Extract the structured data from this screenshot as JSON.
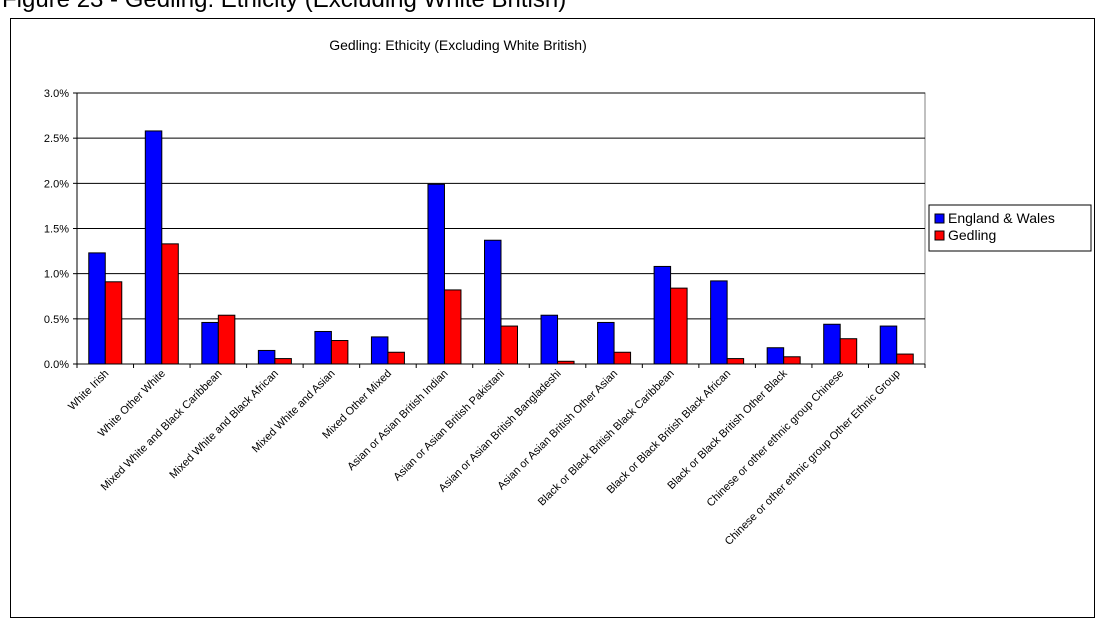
{
  "caption": "Figure 23 - Gedling: Ethicity (Excluding White British)",
  "chart_data": {
    "type": "bar",
    "title": "Gedling: Ethicity (Excluding White British)",
    "xlabel": "",
    "ylabel": "",
    "ylim": [
      0,
      3.0
    ],
    "yticks": [
      "0.0%",
      "0.5%",
      "1.0%",
      "1.5%",
      "2.0%",
      "2.5%",
      "3.0%"
    ],
    "grid": true,
    "legend_position": "right",
    "categories": [
      "White Irish",
      "White Other White",
      "Mixed White and Black Caribbean",
      "Mixed White and Black African",
      "Mixed White and Asian",
      "Mixed Other Mixed",
      "Asian or Asian British Indian",
      "Asian or Asian British Pakistani",
      "Asian or Asian British Bangladeshi",
      "Asian or Asian British Other Asian",
      "Black or Black British Black Caribbean",
      "Black or Black British Black African",
      "Black or Black British Other Black",
      "Chinese or other ethnic group Chinese",
      "Chinese or other ethnic group Other Ethnic Group"
    ],
    "series": [
      {
        "name": "England & Wales",
        "color": "#0000ff",
        "values": [
          1.23,
          2.58,
          0.46,
          0.15,
          0.36,
          0.3,
          1.99,
          1.37,
          0.54,
          0.46,
          1.08,
          0.92,
          0.18,
          0.44,
          0.42
        ]
      },
      {
        "name": "Gedling",
        "color": "#ff0000",
        "values": [
          0.91,
          1.33,
          0.54,
          0.06,
          0.26,
          0.13,
          0.82,
          0.42,
          0.03,
          0.13,
          0.84,
          0.06,
          0.08,
          0.28,
          0.11
        ]
      }
    ]
  }
}
